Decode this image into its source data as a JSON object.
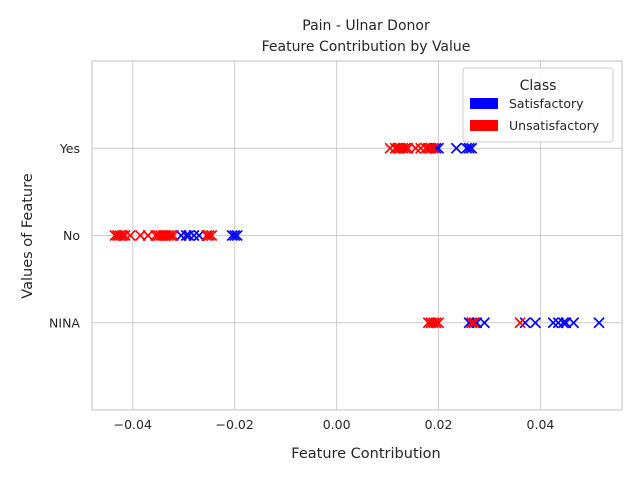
{
  "chart_data": {
    "type": "scatter",
    "title": "Pain - Ulnar Donor",
    "subtitle": "Feature Contribution by Value",
    "xlabel": "Feature Contribution",
    "ylabel": "Values of Feature",
    "xlim": [
      -0.048,
      0.056
    ],
    "x_ticks": [
      -0.04,
      -0.02,
      0.0,
      0.02,
      0.04
    ],
    "x_tick_labels": [
      "−0.04",
      "−0.02",
      "0.00",
      "0.02",
      "0.04"
    ],
    "categories": [
      "NINA",
      "No",
      "Yes"
    ],
    "grid": true,
    "marker": "x",
    "legend": {
      "title": "Class",
      "placement": "top-right",
      "entries": [
        {
          "name": "Satisfactory",
          "color": "#0000ff"
        },
        {
          "name": "Unsatisfactory",
          "color": "#ff0000"
        }
      ]
    },
    "series": [
      {
        "name": "Satisfactory",
        "color": "#0000ff",
        "points": [
          {
            "y": "Yes",
            "x": 0.0195
          },
          {
            "y": "Yes",
            "x": 0.02
          },
          {
            "y": "Yes",
            "x": 0.0235
          },
          {
            "y": "Yes",
            "x": 0.0255
          },
          {
            "y": "Yes",
            "x": 0.026
          },
          {
            "y": "Yes",
            "x": 0.0265
          },
          {
            "y": "No",
            "x": -0.0305
          },
          {
            "y": "No",
            "x": -0.0295
          },
          {
            "y": "No",
            "x": -0.029
          },
          {
            "y": "No",
            "x": -0.028
          },
          {
            "y": "No",
            "x": -0.027
          },
          {
            "y": "No",
            "x": -0.0255
          },
          {
            "y": "No",
            "x": -0.0205
          },
          {
            "y": "No",
            "x": -0.02
          },
          {
            "y": "No",
            "x": -0.0195
          },
          {
            "y": "NINA",
            "x": 0.026
          },
          {
            "y": "NINA",
            "x": 0.0265
          },
          {
            "y": "NINA",
            "x": 0.027
          },
          {
            "y": "NINA",
            "x": 0.0275
          },
          {
            "y": "NINA",
            "x": 0.029
          },
          {
            "y": "NINA",
            "x": 0.037
          },
          {
            "y": "NINA",
            "x": 0.039
          },
          {
            "y": "NINA",
            "x": 0.0425
          },
          {
            "y": "NINA",
            "x": 0.0435
          },
          {
            "y": "NINA",
            "x": 0.0445
          },
          {
            "y": "NINA",
            "x": 0.045
          },
          {
            "y": "NINA",
            "x": 0.0465
          },
          {
            "y": "NINA",
            "x": 0.0515
          }
        ]
      },
      {
        "name": "Unsatisfactory",
        "color": "#ff0000",
        "points": [
          {
            "y": "Yes",
            "x": 0.0105
          },
          {
            "y": "Yes",
            "x": 0.0115
          },
          {
            "y": "Yes",
            "x": 0.012
          },
          {
            "y": "Yes",
            "x": 0.0125
          },
          {
            "y": "Yes",
            "x": 0.013
          },
          {
            "y": "Yes",
            "x": 0.0135
          },
          {
            "y": "Yes",
            "x": 0.014
          },
          {
            "y": "Yes",
            "x": 0.0155
          },
          {
            "y": "Yes",
            "x": 0.0165
          },
          {
            "y": "Yes",
            "x": 0.0175
          },
          {
            "y": "Yes",
            "x": 0.018
          },
          {
            "y": "Yes",
            "x": 0.0185
          },
          {
            "y": "Yes",
            "x": 0.019
          },
          {
            "y": "No",
            "x": -0.0435
          },
          {
            "y": "No",
            "x": -0.043
          },
          {
            "y": "No",
            "x": -0.0425
          },
          {
            "y": "No",
            "x": -0.042
          },
          {
            "y": "No",
            "x": -0.0415
          },
          {
            "y": "No",
            "x": -0.0405
          },
          {
            "y": "No",
            "x": -0.0385
          },
          {
            "y": "No",
            "x": -0.037
          },
          {
            "y": "No",
            "x": -0.0355
          },
          {
            "y": "No",
            "x": -0.035
          },
          {
            "y": "No",
            "x": -0.0345
          },
          {
            "y": "No",
            "x": -0.034
          },
          {
            "y": "No",
            "x": -0.0335
          },
          {
            "y": "No",
            "x": -0.033
          },
          {
            "y": "No",
            "x": -0.0325
          },
          {
            "y": "No",
            "x": -0.032
          },
          {
            "y": "No",
            "x": -0.0255
          },
          {
            "y": "No",
            "x": -0.025
          },
          {
            "y": "No",
            "x": -0.0245
          },
          {
            "y": "NINA",
            "x": 0.018
          },
          {
            "y": "NINA",
            "x": 0.0185
          },
          {
            "y": "NINA",
            "x": 0.019
          },
          {
            "y": "NINA",
            "x": 0.0195
          },
          {
            "y": "NINA",
            "x": 0.02
          },
          {
            "y": "NINA",
            "x": 0.0265
          },
          {
            "y": "NINA",
            "x": 0.027
          },
          {
            "y": "NINA",
            "x": 0.036
          }
        ]
      }
    ]
  }
}
